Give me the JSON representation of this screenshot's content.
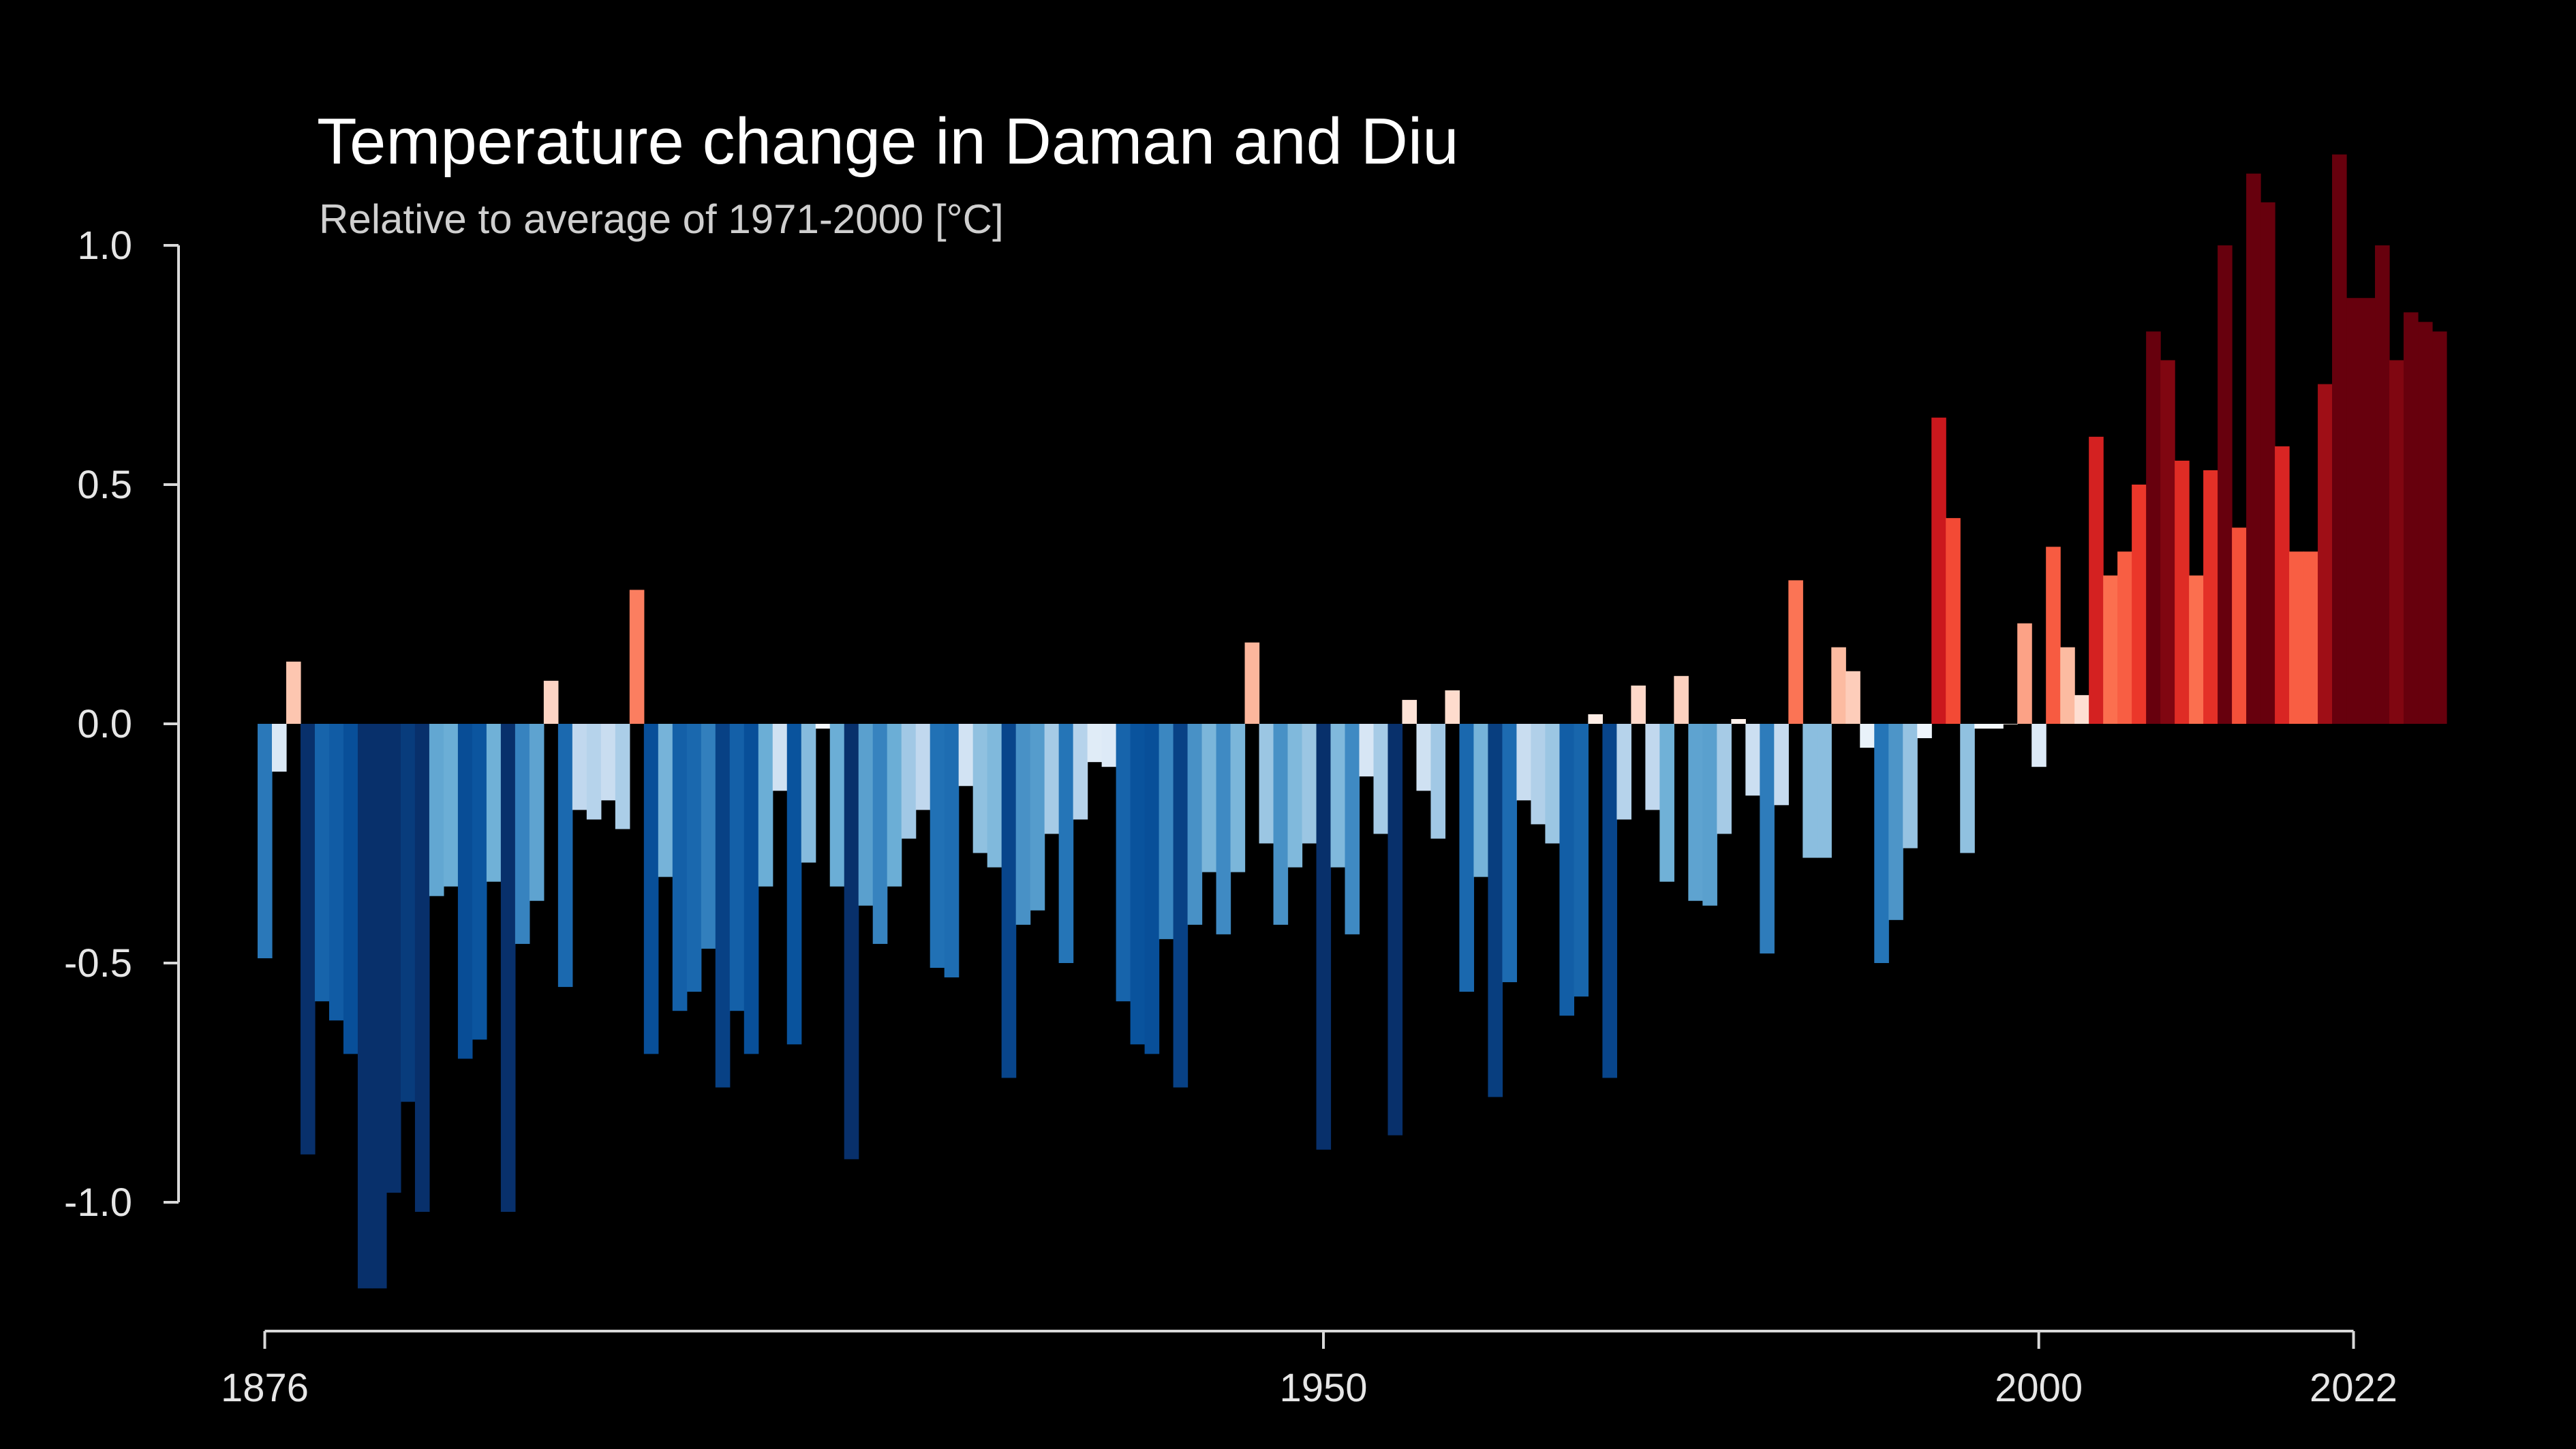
{
  "chart_data": {
    "type": "bar",
    "title": "Temperature change in Daman and Diu",
    "subtitle": "Relative to average of 1971-2000  [°C]",
    "xlabel": "",
    "ylabel": "",
    "x_start": 1876,
    "x_end": 2022,
    "xlim": [
      1876,
      2022
    ],
    "ylim": [
      -1.2,
      1.2
    ],
    "x_ticks": [
      "1876",
      "1950",
      "2000",
      "2022"
    ],
    "y_ticks": [
      "1.0",
      "0.5",
      "0.0",
      "-0.5",
      "-1.0"
    ],
    "y_tick_values": [
      1.0,
      0.5,
      0.0,
      -0.5,
      -1.0
    ],
    "grid": false,
    "legend": "none",
    "color_scale": "blue-white-red diverging (cold = dark blue, warm = dark red)",
    "values": [
      -0.49,
      -0.1,
      0.13,
      -0.9,
      -0.58,
      -0.62,
      -0.69,
      -1.18,
      -1.18,
      -0.98,
      -0.79,
      -1.02,
      -0.36,
      -0.34,
      -0.7,
      -0.66,
      -0.33,
      -1.02,
      -0.46,
      -0.37,
      0.09,
      -0.55,
      -0.18,
      -0.2,
      -0.16,
      -0.22,
      0.28,
      -0.69,
      -0.32,
      -0.6,
      -0.56,
      -0.47,
      -0.76,
      -0.6,
      -0.69,
      -0.34,
      -0.14,
      -0.67,
      -0.29,
      -0.01,
      -0.34,
      -0.91,
      -0.38,
      -0.46,
      -0.34,
      -0.24,
      -0.18,
      -0.51,
      -0.53,
      -0.13,
      -0.27,
      -0.3,
      -0.74,
      -0.42,
      -0.39,
      -0.23,
      -0.5,
      -0.2,
      -0.08,
      -0.09,
      -0.58,
      -0.67,
      -0.69,
      -0.45,
      -0.76,
      -0.42,
      -0.31,
      -0.44,
      -0.31,
      0.17,
      -0.25,
      -0.42,
      -0.3,
      -0.25,
      -0.89,
      -0.3,
      -0.44,
      -0.11,
      -0.23,
      -0.86,
      0.05,
      -0.14,
      -0.24,
      0.07,
      -0.56,
      -0.32,
      -0.78,
      -0.54,
      -0.16,
      -0.21,
      -0.25,
      -0.61,
      -0.57,
      0.02,
      -0.74,
      -0.2,
      0.08,
      -0.18,
      -0.33,
      0.1,
      -0.37,
      -0.38,
      -0.23,
      0.01,
      -0.15,
      -0.48,
      -0.17,
      0.3,
      -0.28,
      -0.28,
      0.16,
      0.11,
      -0.05,
      -0.5,
      -0.41,
      -0.26,
      -0.03,
      0.64,
      0.43,
      -0.27,
      -0.01,
      -0.01,
      0.0,
      0.21,
      -0.09,
      0.37,
      0.16,
      0.06,
      0.6,
      0.31,
      0.36,
      0.5,
      0.82,
      0.76,
      0.55,
      0.31,
      0.53,
      1.0,
      0.41,
      1.15,
      1.09,
      0.58,
      0.36,
      0.36,
      0.71,
      1.19,
      0.89,
      0.89,
      1.0,
      0.76,
      0.86,
      0.84,
      0.82
    ]
  }
}
